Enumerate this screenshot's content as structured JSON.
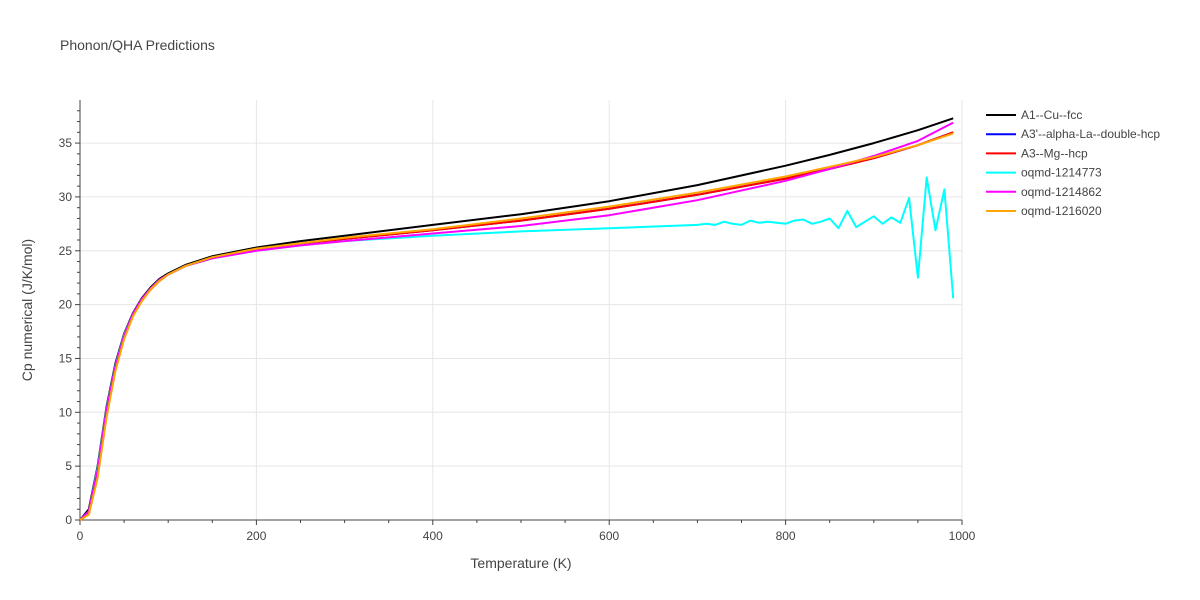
{
  "chart_data": {
    "type": "line",
    "title": "Phonon/QHA Predictions",
    "xlabel": "Temperature (K)",
    "ylabel": "Cp numerical (J/K/mol)",
    "xlim": [
      0,
      1000
    ],
    "ylim": [
      0,
      39
    ],
    "x_ticks": [
      0,
      200,
      400,
      600,
      800,
      1000
    ],
    "y_ticks": [
      0,
      5,
      10,
      15,
      20,
      25,
      30,
      35
    ],
    "grid": true,
    "legend_position": "top-right",
    "series": [
      {
        "name": "A1--Cu--fcc",
        "color": "#000000",
        "x": [
          0,
          10,
          20,
          30,
          40,
          50,
          60,
          70,
          80,
          90,
          100,
          120,
          150,
          200,
          250,
          300,
          400,
          500,
          600,
          700,
          800,
          850,
          900,
          950,
          990
        ],
        "y": [
          0,
          1.0,
          5.0,
          10.5,
          14.5,
          17.3,
          19.2,
          20.6,
          21.6,
          22.4,
          22.9,
          23.7,
          24.5,
          25.3,
          25.9,
          26.4,
          27.4,
          28.4,
          29.6,
          31.1,
          32.9,
          33.9,
          35.0,
          36.2,
          37.3
        ]
      },
      {
        "name": "A3'--alpha-La--double-hcp",
        "color": "#0000ff",
        "x": [
          0,
          10,
          20,
          30,
          40,
          50,
          60,
          70,
          80,
          90,
          100,
          120,
          150,
          200,
          250,
          300,
          400,
          500,
          600,
          700,
          800,
          850,
          900,
          950,
          990
        ],
        "y": [
          0,
          0.6,
          4.2,
          9.8,
          14.0,
          17.0,
          19.0,
          20.4,
          21.4,
          22.2,
          22.8,
          23.6,
          24.3,
          25.1,
          25.6,
          26.1,
          26.9,
          27.8,
          28.9,
          30.2,
          31.7,
          32.6,
          33.6,
          34.8,
          36.0
        ]
      },
      {
        "name": "A3--Mg--hcp",
        "color": "#ff0000",
        "x": [
          0,
          10,
          20,
          30,
          40,
          50,
          60,
          70,
          80,
          90,
          100,
          120,
          150,
          200,
          250,
          300,
          400,
          500,
          600,
          700,
          800,
          850,
          900,
          950,
          990
        ],
        "y": [
          0,
          0.6,
          4.2,
          9.8,
          14.0,
          17.0,
          19.0,
          20.4,
          21.4,
          22.2,
          22.8,
          23.6,
          24.3,
          25.1,
          25.6,
          26.1,
          26.9,
          27.8,
          28.9,
          30.2,
          31.7,
          32.6,
          33.6,
          34.8,
          36.0
        ]
      },
      {
        "name": "oqmd-1214773",
        "color": "#00ffff",
        "x": [
          0,
          10,
          20,
          30,
          40,
          50,
          60,
          70,
          80,
          90,
          100,
          120,
          150,
          200,
          250,
          300,
          400,
          500,
          600,
          700,
          710,
          720,
          730,
          740,
          750,
          760,
          770,
          780,
          790,
          800,
          810,
          820,
          830,
          840,
          850,
          860,
          870,
          880,
          890,
          900,
          910,
          920,
          930,
          940,
          950,
          960,
          970,
          980,
          990
        ],
        "y": [
          0,
          0.8,
          4.8,
          10.3,
          14.3,
          17.2,
          19.1,
          20.5,
          21.5,
          22.3,
          22.8,
          23.6,
          24.3,
          25.0,
          25.5,
          25.9,
          26.4,
          26.8,
          27.1,
          27.4,
          27.5,
          27.4,
          27.7,
          27.5,
          27.4,
          27.8,
          27.6,
          27.7,
          27.6,
          27.5,
          27.8,
          27.9,
          27.5,
          27.7,
          28.0,
          27.1,
          28.7,
          27.2,
          27.7,
          28.2,
          27.5,
          28.1,
          27.6,
          29.9,
          22.5,
          31.8,
          26.9,
          30.7,
          20.6
        ]
      },
      {
        "name": "oqmd-1214862",
        "color": "#ff00ff",
        "x": [
          0,
          10,
          20,
          30,
          40,
          50,
          60,
          70,
          80,
          90,
          100,
          120,
          150,
          200,
          250,
          300,
          400,
          500,
          600,
          700,
          800,
          850,
          900,
          950,
          990
        ],
        "y": [
          0,
          0.8,
          4.6,
          10.2,
          14.2,
          17.1,
          19.1,
          20.5,
          21.5,
          22.3,
          22.8,
          23.6,
          24.3,
          25.0,
          25.5,
          25.9,
          26.6,
          27.3,
          28.3,
          29.7,
          31.5,
          32.6,
          33.8,
          35.2,
          36.9
        ]
      },
      {
        "name": "oqmd-1216020",
        "color": "#ffa500",
        "x": [
          0,
          10,
          20,
          30,
          40,
          50,
          60,
          70,
          80,
          90,
          100,
          120,
          150,
          200,
          250,
          300,
          400,
          500,
          600,
          700,
          800,
          850,
          900,
          950,
          990
        ],
        "y": [
          0,
          0.5,
          3.9,
          9.5,
          13.8,
          16.8,
          18.9,
          20.3,
          21.4,
          22.2,
          22.8,
          23.6,
          24.4,
          25.2,
          25.7,
          26.2,
          27.0,
          28.0,
          29.1,
          30.4,
          31.9,
          32.8,
          33.7,
          34.8,
          35.9
        ]
      }
    ]
  }
}
